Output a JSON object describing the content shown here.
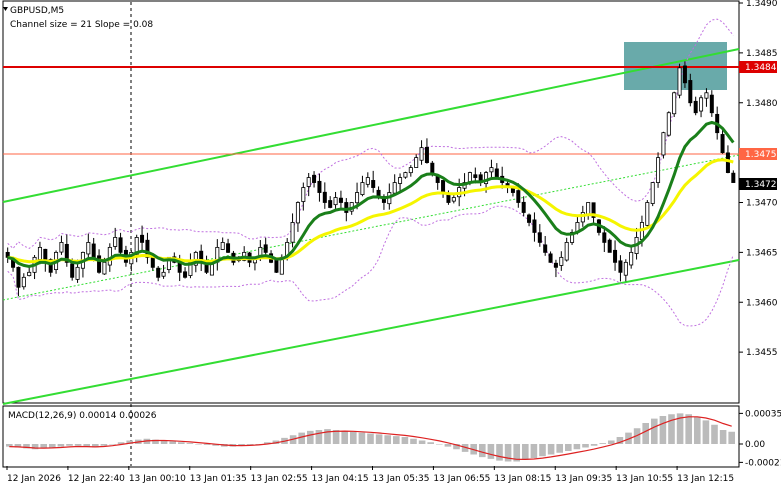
{
  "header": {
    "symbol_line": "GBPUSD,M5",
    "channel_line": "Channel size = 21 Slope = 0.08"
  },
  "macd": {
    "label": "MACD(12,26,9) 0.00014 0.00026"
  },
  "colors": {
    "up_candle": "#000000",
    "down_candle": "#000000",
    "ema_green": "#1a7f1a",
    "ema_yellow": "#f5f500",
    "channel": "#33dd33",
    "resistance": "#dd0000",
    "level_1_3475": "#ff6644",
    "bollinger": "#c070e0",
    "macd_hist": "#bbbbbb",
    "macd_signal": "#dd2222",
    "highlight_box": "#4f9b9b",
    "current_label": "#000000"
  },
  "chart_data": [
    {
      "type": "candlestick",
      "symbol": "GBPUSD",
      "timeframe": "M5",
      "ylim": [
        1.345,
        1.349
      ],
      "y_ticks": [
        "1.3490",
        "1.3485",
        "1.3480",
        "1.3475",
        "1.3470",
        "1.3465",
        "1.3460",
        "1.3455"
      ],
      "x_ticks": [
        "12 Jan 2026",
        "12 Jan 22:40",
        "13 Jan 00:10",
        "13 Jan 01:35",
        "13 Jan 02:55",
        "13 Jan 04:15",
        "13 Jan 05:35",
        "13 Jan 06:55",
        "13 Jan 08:15",
        "13 Jan 09:35",
        "13 Jan 10:55",
        "13 Jan 12:15"
      ],
      "price_levels": [
        {
          "label": "1.3484",
          "value": 1.3484,
          "kind": "resistance"
        },
        {
          "label": "1.3475",
          "value": 1.3475,
          "kind": "level"
        },
        {
          "label": "1.3472",
          "value": 1.3472,
          "kind": "current"
        }
      ],
      "close": [
        1.34645,
        1.34635,
        1.34615,
        1.34625,
        1.3463,
        1.34645,
        1.34655,
        1.3464,
        1.3463,
        1.3465,
        1.3466,
        1.3464,
        1.34625,
        1.34635,
        1.3465,
        1.3466,
        1.34645,
        1.3463,
        1.3464,
        1.34655,
        1.34665,
        1.3465,
        1.3464,
        1.3465,
        1.34665,
        1.3466,
        1.34645,
        1.34635,
        1.34625,
        1.3463,
        1.34645,
        1.3464,
        1.3463,
        1.34625,
        1.3464,
        1.3465,
        1.3464,
        1.3463,
        1.3464,
        1.34655,
        1.3466,
        1.3465,
        1.3464,
        1.34645,
        1.3465,
        1.3464,
        1.34645,
        1.34655,
        1.3465,
        1.3464,
        1.3463,
        1.34645,
        1.3466,
        1.3468,
        1.347,
        1.34715,
        1.34725,
        1.3472,
        1.3471,
        1.347,
        1.34695,
        1.34705,
        1.347,
        1.3469,
        1.347,
        1.3471,
        1.3472,
        1.34725,
        1.34715,
        1.34705,
        1.347,
        1.3471,
        1.3472,
        1.34725,
        1.3473,
        1.34735,
        1.34745,
        1.34755,
        1.3474,
        1.3473,
        1.3472,
        1.3471,
        1.347,
        1.34705,
        1.34715,
        1.3472,
        1.3473,
        1.34725,
        1.3472,
        1.3473,
        1.34735,
        1.34725,
        1.3472,
        1.34715,
        1.3471,
        1.347,
        1.3469,
        1.3468,
        1.3467,
        1.3466,
        1.3465,
        1.3464,
        1.34635,
        1.34645,
        1.3466,
        1.3467,
        1.3468,
        1.3469,
        1.347,
        1.34685,
        1.3467,
        1.3466,
        1.3465,
        1.3464,
        1.3463,
        1.3464,
        1.3465,
        1.34665,
        1.3468,
        1.347,
        1.3472,
        1.34745,
        1.3477,
        1.3479,
        1.3481,
        1.34835,
        1.3482,
        1.348,
        1.3479,
        1.34805,
        1.3481,
        1.3479,
        1.3477,
        1.3475,
        1.3473,
        1.3472
      ],
      "macd_values": [
        -3e-05,
        -4e-05,
        -5e-05,
        -6e-05,
        -5e-05,
        -4e-05,
        -3e-05,
        -2e-05,
        -2e-05,
        -3e-05,
        -4e-05,
        -2e-05,
        0.0,
        2e-05,
        4e-05,
        5e-05,
        6e-05,
        5e-05,
        4e-05,
        3e-05,
        2e-05,
        1e-05,
        0.0,
        -1e-05,
        -2e-05,
        -3e-05,
        -3e-05,
        -2e-05,
        -1e-05,
        0.0,
        2e-05,
        4e-05,
        7e-05,
        0.0001,
        0.00013,
        0.00015,
        0.00016,
        0.00017,
        0.00016,
        0.00015,
        0.00014,
        0.00013,
        0.00012,
        0.00011,
        0.0001,
        9e-05,
        8e-05,
        6e-05,
        4e-05,
        2e-05,
        0.0,
        -3e-05,
        -6e-05,
        -9e-05,
        -0.00012,
        -0.00015,
        -0.00017,
        -0.00019,
        -0.0002,
        -0.0002,
        -0.00018,
        -0.00016,
        -0.00014,
        -0.00012,
        -0.0001,
        -8e-05,
        -6e-05,
        -4e-05,
        -2e-05,
        1e-05,
        4e-05,
        8e-05,
        0.00013,
        0.00018,
        0.00024,
        0.00029,
        0.00032,
        0.00034,
        0.00035,
        0.00034,
        0.00031,
        0.00027,
        0.00022,
        0.00016,
        0.00014
      ],
      "macd_y_ticks": [
        "0.00035",
        "0.00",
        "-0.00021"
      ],
      "macd_ylim": [
        -0.00024,
        0.0004
      ]
    }
  ]
}
